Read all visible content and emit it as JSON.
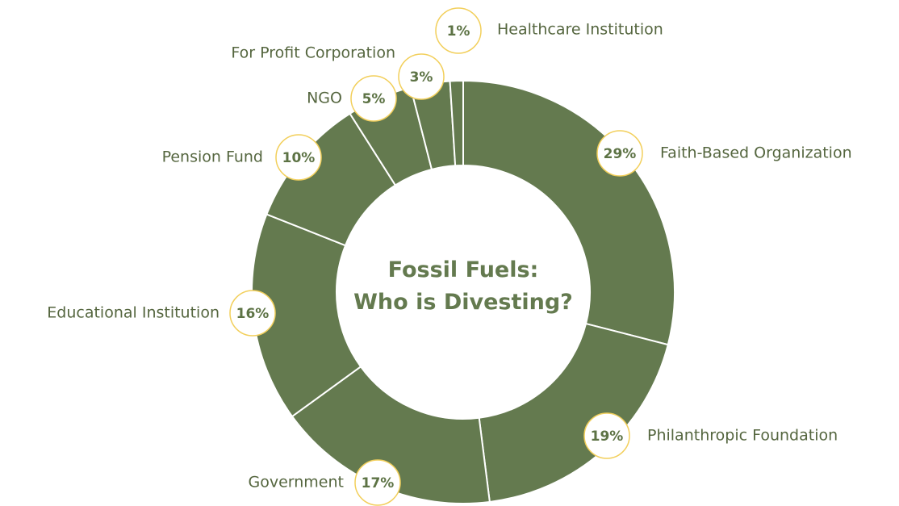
{
  "chart_data": {
    "type": "donut",
    "title": "Fossil Fuels:\nWho is Divesting?",
    "categories": [
      "Faith-Based Organization",
      "Philanthropic Foundation",
      "Government",
      "Educational Institution",
      "Pension Fund",
      "NGO",
      "For Profit Corporation",
      "Healthcare Institution"
    ],
    "values": [
      29,
      19,
      17,
      16,
      10,
      5,
      3,
      1
    ],
    "value_labels": [
      "29%",
      "19%",
      "17%",
      "16%",
      "10%",
      "5%",
      "3%",
      "1%"
    ],
    "color": "#647a4f"
  }
}
